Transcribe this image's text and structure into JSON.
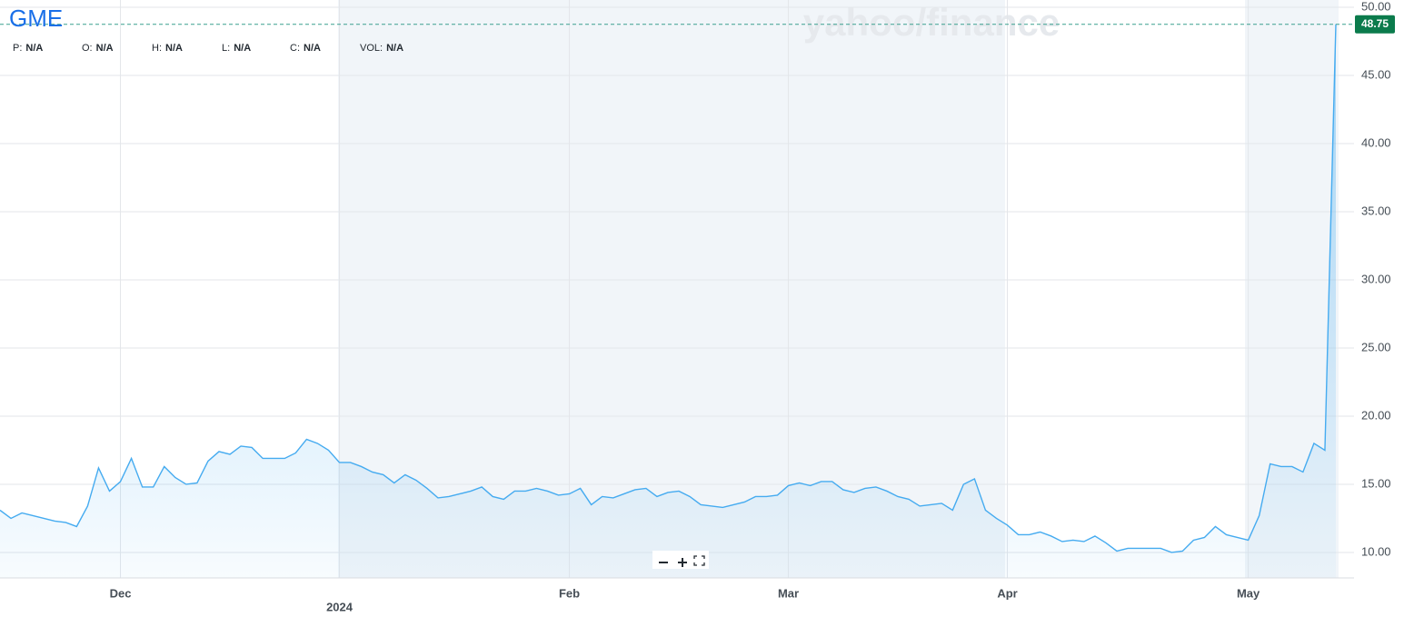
{
  "chart_data": {
    "type": "area",
    "title": "GME",
    "watermark": "yahoo/finance",
    "info": [
      {
        "label": "P:",
        "value": "N/A"
      },
      {
        "label": "O:",
        "value": "N/A"
      },
      {
        "label": "H:",
        "value": "N/A"
      },
      {
        "label": "L:",
        "value": "N/A"
      },
      {
        "label": "C:",
        "value": "N/A"
      },
      {
        "label": "VOL:",
        "value": "N/A"
      }
    ],
    "categories": [
      null,
      null,
      null,
      null,
      null,
      null,
      null,
      null,
      null,
      null,
      null,
      "Dec",
      null,
      null,
      null,
      null,
      null,
      null,
      null,
      null,
      null,
      null,
      null,
      null,
      null,
      null,
      null,
      null,
      null,
      null,
      null,
      "2024",
      null,
      null,
      null,
      null,
      null,
      null,
      null,
      null,
      null,
      null,
      null,
      null,
      null,
      null,
      null,
      null,
      null,
      null,
      null,
      null,
      "Feb",
      null,
      null,
      null,
      null,
      null,
      null,
      null,
      null,
      null,
      null,
      null,
      null,
      null,
      null,
      null,
      null,
      null,
      null,
      null,
      "Mar",
      null,
      null,
      null,
      null,
      null,
      null,
      null,
      null,
      null,
      null,
      null,
      null,
      null,
      null,
      null,
      null,
      null,
      null,
      null,
      "Apr",
      null,
      null,
      null,
      null,
      null,
      null,
      null,
      null,
      null,
      null,
      null,
      null,
      null,
      null,
      null,
      null,
      null,
      null,
      null,
      null,
      null,
      "May",
      null,
      null,
      null,
      null,
      null,
      null,
      null,
      null
    ],
    "values": [
      13.1,
      12.5,
      12.9,
      12.7,
      12.5,
      12.3,
      12.2,
      11.9,
      13.4,
      16.2,
      14.5,
      15.2,
      16.9,
      14.8,
      14.8,
      16.3,
      15.5,
      15.0,
      15.1,
      16.7,
      17.4,
      17.2,
      17.8,
      17.7,
      16.9,
      16.9,
      16.9,
      17.3,
      18.3,
      18.0,
      17.5,
      16.6,
      16.6,
      16.3,
      15.9,
      15.7,
      15.1,
      15.7,
      15.3,
      14.7,
      14.0,
      14.1,
      14.3,
      14.5,
      14.8,
      14.1,
      13.9,
      14.5,
      14.5,
      14.7,
      14.5,
      14.2,
      14.3,
      14.7,
      13.5,
      14.1,
      14.0,
      14.3,
      14.6,
      14.7,
      14.1,
      14.4,
      14.5,
      14.1,
      13.5,
      13.4,
      13.3,
      13.5,
      13.7,
      14.1,
      14.1,
      14.2,
      14.9,
      15.1,
      14.9,
      15.2,
      15.2,
      14.6,
      14.4,
      14.7,
      14.8,
      14.5,
      14.1,
      13.9,
      13.4,
      13.5,
      13.6,
      13.1,
      15.0,
      15.4,
      13.1,
      12.5,
      12.0,
      11.3,
      11.3,
      11.5,
      11.2,
      10.8,
      10.9,
      10.8,
      11.2,
      10.7,
      10.1,
      10.3,
      10.3,
      10.3,
      10.3,
      10.0,
      10.1,
      10.9,
      11.1,
      11.9,
      11.3,
      11.1,
      10.9,
      12.7,
      16.5,
      16.3,
      16.3,
      15.9,
      18.0,
      17.5,
      48.75
    ],
    "color": "#45abf0",
    "ylim": [
      8.13,
      50.53
    ],
    "yticks": [
      {
        "value": 10,
        "label": "10.00"
      },
      {
        "value": 15,
        "label": "15.00"
      },
      {
        "value": 20,
        "label": "20.00"
      },
      {
        "value": 25,
        "label": "25.00"
      },
      {
        "value": 30,
        "label": "30.00"
      },
      {
        "value": 35,
        "label": "35.00"
      },
      {
        "value": 40,
        "label": "40.00"
      },
      {
        "value": 45,
        "label": "45.00"
      },
      {
        "value": 50,
        "label": "50.00"
      }
    ],
    "grid": true
  }
}
